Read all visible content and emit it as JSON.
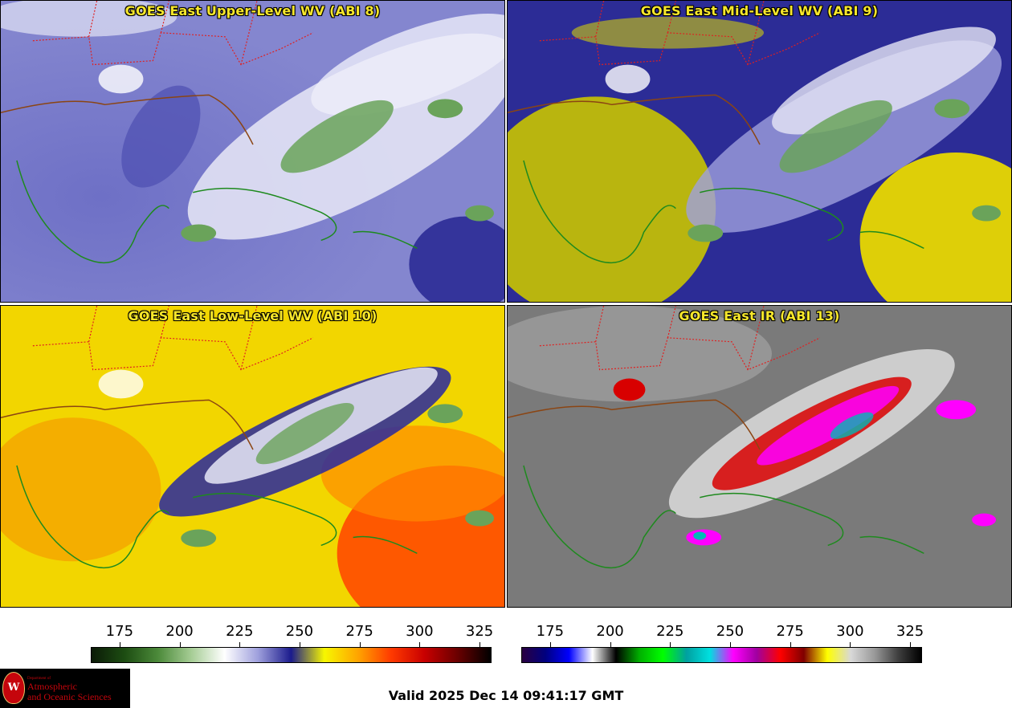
{
  "panels": [
    {
      "title": "GOES East Upper-Level WV (ABI 8)"
    },
    {
      "title": "GOES East Mid-Level WV (ABI 9)"
    },
    {
      "title": "GOES East Low-Level WV (ABI 10)"
    },
    {
      "title": "GOES East IR (ABI 13)"
    }
  ],
  "colorbar_wv": {
    "ticks": [
      "175",
      "200",
      "225",
      "250",
      "275",
      "300",
      "325"
    ],
    "colors": [
      "#0b1a07",
      "#1d4d12",
      "#4c8a3a",
      "#a6cd95",
      "#ffffff",
      "#9fa0dd",
      "#1b1b8c",
      "#f7f700",
      "#ffa500",
      "#ff3a00",
      "#c90000",
      "#6a0000",
      "#000000"
    ]
  },
  "colorbar_ir": {
    "ticks": [
      "175",
      "200",
      "225",
      "250",
      "275",
      "300",
      "325"
    ],
    "colors": [
      "#2a0040",
      "#000080",
      "#0000ff",
      "#ffffff",
      "#000000",
      "#00b000",
      "#00ff00",
      "#00a0a0",
      "#00e0e0",
      "#ff00ff",
      "#a000a0",
      "#ff0000",
      "#800000",
      "#ffff00",
      "#d8d8d8",
      "#9a9a9a",
      "#404040",
      "#000000"
    ]
  },
  "logo": {
    "line1": "Department of",
    "line2": "Atmospheric",
    "line3": "and Oceanic Sciences",
    "seal": "W"
  },
  "valid_time": "Valid 2025 Dec 14 09:41:17 GMT"
}
